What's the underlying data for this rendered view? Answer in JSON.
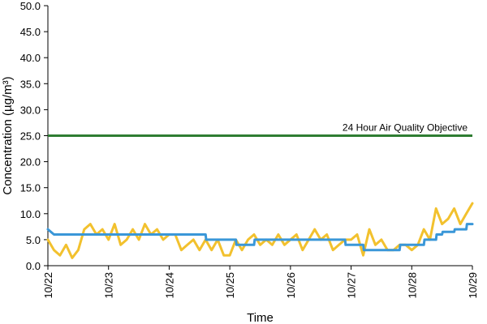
{
  "chart_data": {
    "type": "line",
    "xlabel": "Time",
    "ylabel": "Concentration (µg/m³)",
    "ylim": [
      0,
      50
    ],
    "xlim": [
      "10/22",
      "10/29"
    ],
    "y_ticks": [
      "0.0",
      "5.0",
      "10.0",
      "15.0",
      "20.0",
      "25.0",
      "30.0",
      "35.0",
      "40.0",
      "45.0",
      "50.0"
    ],
    "x_ticks": [
      "10/22",
      "10/23",
      "10/24",
      "10/25",
      "10/26",
      "10/27",
      "10/28",
      "10/29"
    ],
    "x_tick_rotation": "vertical",
    "grid": false,
    "legend": "none",
    "reference_lines": [
      {
        "label": "24 Hour Air Quality Objective",
        "y": 25,
        "color": "#2e7d32"
      }
    ],
    "colors": {
      "hourly": "#f2c12e",
      "rolling": "#3a97d8"
    },
    "series": [
      {
        "style": "hourly",
        "x": [
          0,
          0.1,
          0.2,
          0.3,
          0.4,
          0.5,
          0.6,
          0.7,
          0.8,
          0.9,
          1.0,
          1.1,
          1.2,
          1.3,
          1.4,
          1.5,
          1.6,
          1.7,
          1.8,
          1.9,
          2.0,
          2.1,
          2.2,
          2.3,
          2.4,
          2.5,
          2.6,
          2.7,
          2.8,
          2.9,
          3.0,
          3.1,
          3.2,
          3.3,
          3.4,
          3.5,
          3.6,
          3.7,
          3.8,
          3.9,
          4.0,
          4.1,
          4.2,
          4.3,
          4.4,
          4.5,
          4.6,
          4.7,
          4.8,
          4.9,
          5.0,
          5.1,
          5.2,
          5.3,
          5.4,
          5.5,
          5.6,
          5.7,
          5.8,
          5.9,
          6.0,
          6.1,
          6.2,
          6.3,
          6.4,
          6.5,
          6.6,
          6.7,
          6.8,
          6.9,
          7.0
        ],
        "y": [
          5,
          3,
          2,
          4,
          1.5,
          3,
          7,
          8,
          6,
          7,
          5,
          8,
          4,
          5,
          7,
          5,
          8,
          6,
          7,
          5,
          6,
          6,
          3,
          4,
          5,
          3,
          5,
          3,
          5,
          2,
          2,
          5,
          3,
          5,
          6,
          4,
          5,
          4,
          6,
          4,
          5,
          6,
          3,
          5,
          7,
          5,
          6,
          3,
          4,
          5,
          5,
          6,
          2,
          7,
          4,
          5,
          3,
          3,
          4,
          4,
          3,
          4,
          7,
          5,
          11,
          8,
          9,
          11,
          8,
          10,
          12
        ]
      },
      {
        "style": "rolling",
        "x": [
          0,
          0.1,
          0.11,
          0.75,
          0.76,
          2.6,
          2.61,
          3.1,
          3.11,
          3.4,
          3.41,
          4.0,
          4.01,
          4.9,
          4.91,
          5.2,
          5.21,
          5.8,
          5.81,
          5.86,
          5.87,
          6.2,
          6.21,
          6.4,
          6.41,
          6.5,
          6.51,
          6.7,
          6.71,
          6.9,
          6.91,
          7.0
        ],
        "y": [
          7,
          6,
          6,
          6,
          6,
          6,
          5,
          5,
          4,
          4,
          5,
          5,
          5,
          5,
          4,
          4,
          3,
          3,
          4,
          4,
          4,
          4,
          5,
          5,
          6,
          6,
          6.5,
          6.5,
          7,
          7,
          8,
          8
        ]
      }
    ]
  }
}
